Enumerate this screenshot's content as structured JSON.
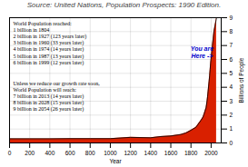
{
  "chart_data": {
    "type": "area",
    "title": "Source: United Nations, Population Prospects: 1990 Edition.",
    "xlabel": "Year",
    "ylabel": "Billions of People",
    "x": [
      1,
      200,
      400,
      600,
      800,
      1000,
      1200,
      1400,
      1500,
      1600,
      1700,
      1750,
      1800,
      1850,
      1900,
      1920,
      1930,
      1940,
      1950,
      1955,
      1960,
      1965,
      1970,
      1975,
      1980,
      1985,
      1990,
      1995,
      1999,
      2013,
      2028,
      2054
    ],
    "values": [
      0.3,
      0.3,
      0.3,
      0.31,
      0.31,
      0.31,
      0.4,
      0.37,
      0.46,
      0.5,
      0.61,
      0.72,
      0.91,
      1.13,
      1.63,
      1.86,
      2.07,
      2.3,
      2.52,
      2.77,
      3.02,
      3.34,
      3.7,
      4.07,
      4.43,
      4.83,
      5.27,
      5.74,
      6.0,
      7.0,
      8.0,
      9.0
    ],
    "color": "#d92000",
    "xlim": [
      0,
      2100
    ],
    "ylim": [
      0,
      9
    ],
    "xticks": [
      0,
      200,
      400,
      600,
      800,
      1000,
      1200,
      1400,
      1600,
      1800,
      2000
    ],
    "yticks": [
      0,
      1,
      2,
      3,
      4,
      5,
      6,
      7,
      8,
      9
    ],
    "grid": true,
    "annotations": [
      {
        "text": "World Population reached:\n1 billion in 1804\n2 billion in 1927 (123 years later)\n3 billion in 1960 (33 years later)\n4 billion in 1974 (14 years later)\n5 billion in 1987 (13 years later)\n6 billion in 1999 (12 years later)"
      },
      {
        "text": "Unless we reduce our growth rate soon,\nWorld Population will reach:\n7 billion in 2013 (14 years later)\n8 billion in 2028 (15 years later)\n9 billion in 2054 (26 years later)"
      },
      {
        "text": "You are\nHere ->",
        "x": 1910,
        "y": 6.5,
        "color": "#0000cc"
      }
    ]
  }
}
